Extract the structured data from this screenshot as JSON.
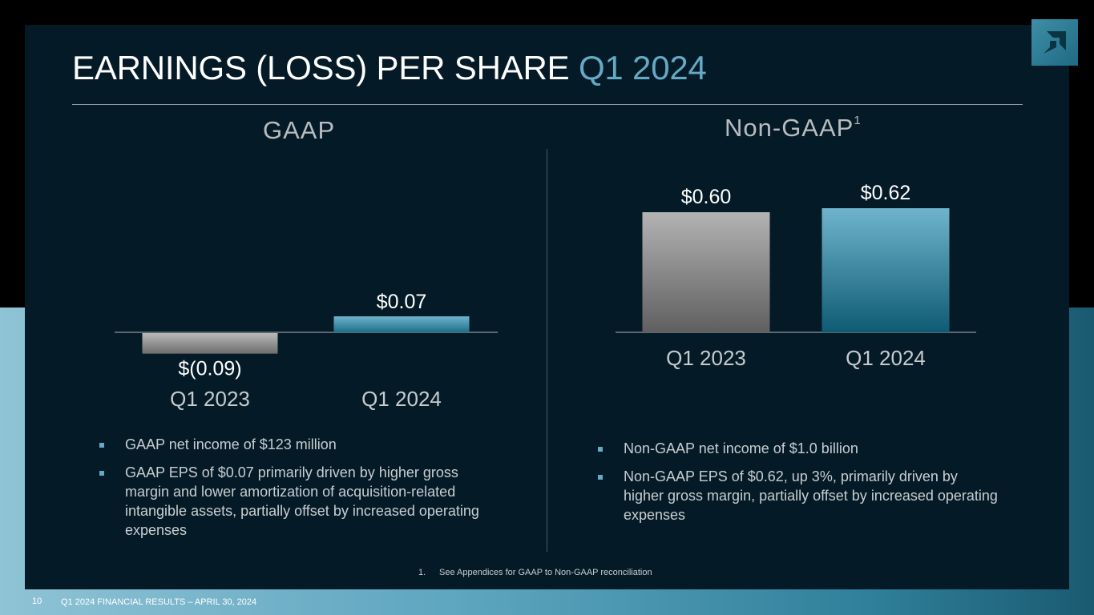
{
  "slide": {
    "title_main": "EARNINGS (LOSS) PER SHARE",
    "title_accent": "Q1 2024",
    "gaap_heading": "GAAP",
    "nongaap_heading": "Non-GAAP",
    "nongaap_sup": "1",
    "footnote_num": "1.",
    "footnote_text": "See Appendices for GAAP to Non-GAAP reconciliation",
    "page_number": "10",
    "footer": "Q1 2024 FINANCIAL RESULTS – APRIL 30, 2024"
  },
  "logo": {
    "icon": "amd-logo-icon"
  },
  "colors": {
    "accent": "#66a9c4",
    "panel": "#041b27",
    "bar_prior": "#9a9a9a",
    "bar_current": "#5fa8c2"
  },
  "gaap_bullets": [
    "GAAP net income of $123 million",
    "GAAP EPS of $0.07 primarily driven by higher gross margin and lower amortization of acquisition-related intangible assets, partially offset by increased operating expenses"
  ],
  "nongaap_bullets": [
    "Non-GAAP net income of $1.0 billion",
    "Non-GAAP EPS of $0.62, up 3%, primarily driven by higher gross margin, partially offset by increased operating expenses"
  ],
  "chart_data": [
    {
      "type": "bar",
      "title": "GAAP",
      "categories": [
        "Q1 2023",
        "Q1 2024"
      ],
      "values": [
        -0.09,
        0.07
      ],
      "labels": [
        "$(0.09)",
        "$0.07"
      ],
      "ylim": [
        -0.09,
        0.07
      ]
    },
    {
      "type": "bar",
      "title": "Non-GAAP",
      "categories": [
        "Q1 2023",
        "Q1 2024"
      ],
      "values": [
        0.6,
        0.62
      ],
      "labels": [
        "$0.60",
        "$0.62"
      ],
      "ylim": [
        0,
        0.62
      ]
    }
  ]
}
